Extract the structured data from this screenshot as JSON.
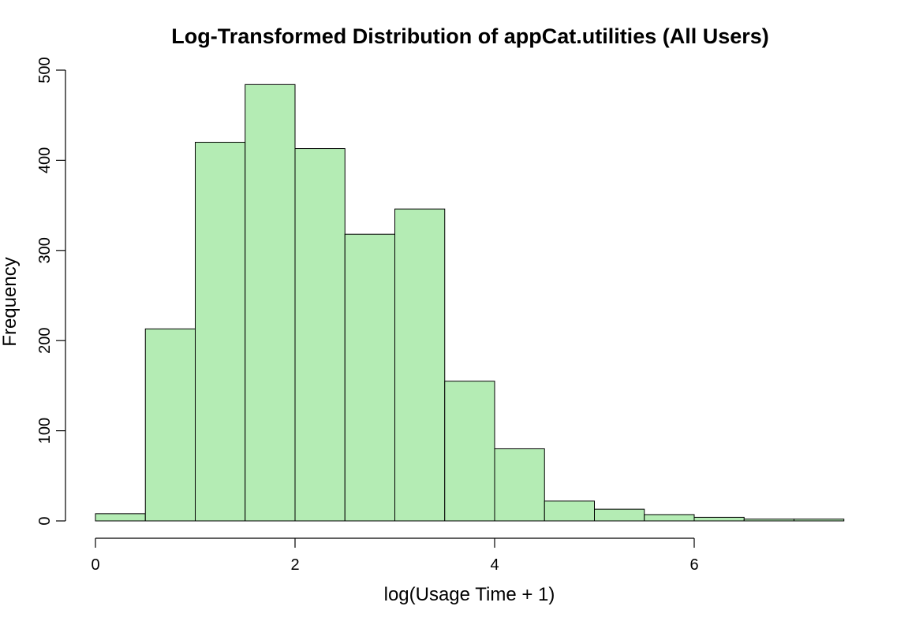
{
  "chart_data": {
    "type": "bar",
    "title": "Log-Transformed Distribution of appCat.utilities (All Users)",
    "xlabel": "log(Usage Time + 1)",
    "ylabel": "Frequency",
    "bin_width": 0.5,
    "bins": [
      {
        "x0": 0.0,
        "x1": 0.5,
        "count": 8
      },
      {
        "x0": 0.5,
        "x1": 1.0,
        "count": 213
      },
      {
        "x0": 1.0,
        "x1": 1.5,
        "count": 420
      },
      {
        "x0": 1.5,
        "x1": 2.0,
        "count": 484
      },
      {
        "x0": 2.0,
        "x1": 2.5,
        "count": 413
      },
      {
        "x0": 2.5,
        "x1": 3.0,
        "count": 318
      },
      {
        "x0": 3.0,
        "x1": 3.5,
        "count": 346
      },
      {
        "x0": 3.5,
        "x1": 4.0,
        "count": 155
      },
      {
        "x0": 4.0,
        "x1": 4.5,
        "count": 80
      },
      {
        "x0": 4.5,
        "x1": 5.0,
        "count": 22
      },
      {
        "x0": 5.0,
        "x1": 5.5,
        "count": 13
      },
      {
        "x0": 5.5,
        "x1": 6.0,
        "count": 7
      },
      {
        "x0": 6.0,
        "x1": 6.5,
        "count": 4
      },
      {
        "x0": 6.5,
        "x1": 7.0,
        "count": 2
      },
      {
        "x0": 7.0,
        "x1": 7.5,
        "count": 2
      }
    ],
    "xlim": [
      0,
      7.5
    ],
    "ylim": [
      0,
      500
    ],
    "x_ticks": [
      0,
      2,
      4,
      6
    ],
    "x_tick_labels": [
      "0",
      "2",
      "4",
      "6"
    ],
    "y_ticks": [
      0,
      100,
      200,
      300,
      400,
      500
    ],
    "y_tick_labels": [
      "0",
      "100",
      "200",
      "300",
      "400",
      "500"
    ],
    "bar_color": "#b4ecb4",
    "grid": false,
    "legend": "none"
  }
}
